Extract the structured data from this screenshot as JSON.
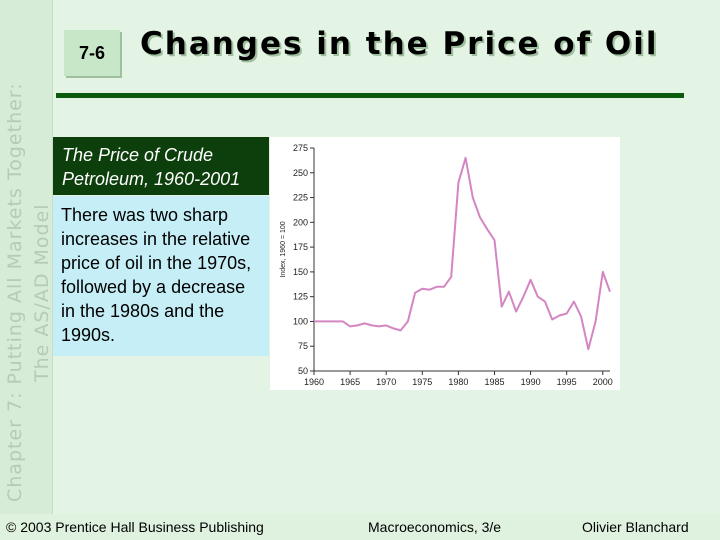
{
  "slide": {
    "number": "7-6",
    "title": "Changes in the Price of Oil",
    "side_line1": "Chapter 7: Putting All Markets Together:",
    "side_line2": "The AS/AD Model"
  },
  "caption": "The Price of Crude Petroleum, 1960-2001",
  "body_text": "There was two sharp increases in the relative price of oil in the 1970s, followed by a decrease in the 1980s and the 1990s.",
  "footer": {
    "copyright": "© 2003 Prentice Hall Business Publishing",
    "book": "Macroeconomics, 3/e",
    "author": "Olivier Blanchard"
  },
  "colors": {
    "line": "#d486c2",
    "axis": "#333333",
    "caption_bg": "#0d3f0d",
    "body_bg": "#c5eef7",
    "rule": "#0c5a0c"
  },
  "chart_data": {
    "type": "line",
    "title": "",
    "xlabel": "",
    "ylabel": "Index, 1960 = 100",
    "xlim": [
      1960,
      2001
    ],
    "ylim": [
      50,
      275
    ],
    "xticks": [
      1960,
      1965,
      1970,
      1975,
      1980,
      1985,
      1990,
      1995,
      2000
    ],
    "yticks": [
      50,
      75,
      100,
      125,
      150,
      175,
      200,
      225,
      250,
      275
    ],
    "grid": false,
    "series": [
      {
        "x": [
          1960,
          1961,
          1962,
          1963,
          1964,
          1965,
          1966,
          1967,
          1968,
          1969,
          1970,
          1971,
          1972,
          1973,
          1974,
          1975,
          1976,
          1977,
          1978,
          1979,
          1980,
          1981,
          1982,
          1983,
          1984,
          1985,
          1986,
          1987,
          1988,
          1989,
          1990,
          1991,
          1992,
          1993,
          1994,
          1995,
          1996,
          1997,
          1998,
          1999,
          2000,
          2001
        ],
        "y": [
          100,
          100,
          100,
          100,
          100,
          95,
          96,
          98,
          96,
          95,
          96,
          93,
          91,
          100,
          129,
          133,
          132,
          135,
          135,
          145,
          240,
          265,
          225,
          205,
          193,
          182,
          115,
          130,
          110,
          125,
          142,
          125,
          120,
          102,
          106,
          108,
          120,
          105,
          72,
          100,
          150,
          130
        ]
      }
    ]
  }
}
